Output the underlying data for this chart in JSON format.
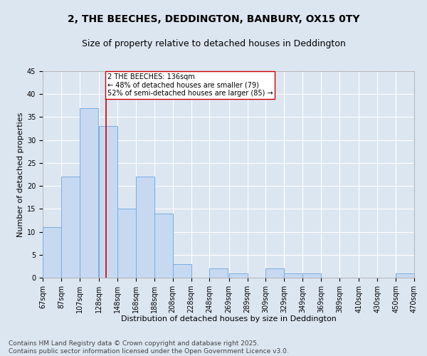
{
  "title_line1": "2, THE BEECHES, DEDDINGTON, BANBURY, OX15 0TY",
  "title_line2": "Size of property relative to detached houses in Deddington",
  "xlabel": "Distribution of detached houses by size in Deddington",
  "ylabel": "Number of detached properties",
  "bins": [
    "67sqm",
    "87sqm",
    "107sqm",
    "128sqm",
    "148sqm",
    "168sqm",
    "188sqm",
    "208sqm",
    "228sqm",
    "248sqm",
    "269sqm",
    "289sqm",
    "309sqm",
    "329sqm",
    "349sqm",
    "369sqm",
    "389sqm",
    "410sqm",
    "430sqm",
    "450sqm",
    "470sqm"
  ],
  "bin_lefts": [
    67,
    87,
    107,
    128,
    148,
    168,
    188,
    208,
    228,
    248,
    269,
    289,
    309,
    329,
    349,
    369,
    389,
    410,
    430,
    450
  ],
  "bin_width": 20,
  "values": [
    11,
    22,
    37,
    33,
    15,
    22,
    14,
    3,
    0,
    2,
    1,
    0,
    2,
    1,
    1,
    0,
    0,
    0,
    0,
    1
  ],
  "bar_color": "#c6d9f1",
  "bar_edge_color": "#7aadde",
  "property_size": 136,
  "property_line_color": "#cc0000",
  "annotation_text": "2 THE BEECHES: 136sqm\n← 48% of detached houses are smaller (79)\n52% of semi-detached houses are larger (85) →",
  "annotation_box_color": "#ffffff",
  "annotation_box_edge": "#cc0000",
  "footer_line1": "Contains HM Land Registry data © Crown copyright and database right 2025.",
  "footer_line2": "Contains public sector information licensed under the Open Government Licence v3.0.",
  "background_color": "#dce6f1",
  "grid_color": "#ffffff",
  "ylim": [
    0,
    45
  ],
  "yticks": [
    0,
    5,
    10,
    15,
    20,
    25,
    30,
    35,
    40,
    45
  ],
  "title_fontsize": 10,
  "subtitle_fontsize": 9,
  "axis_label_fontsize": 8,
  "tick_fontsize": 7,
  "annotation_fontsize": 7,
  "footer_fontsize": 6.5
}
